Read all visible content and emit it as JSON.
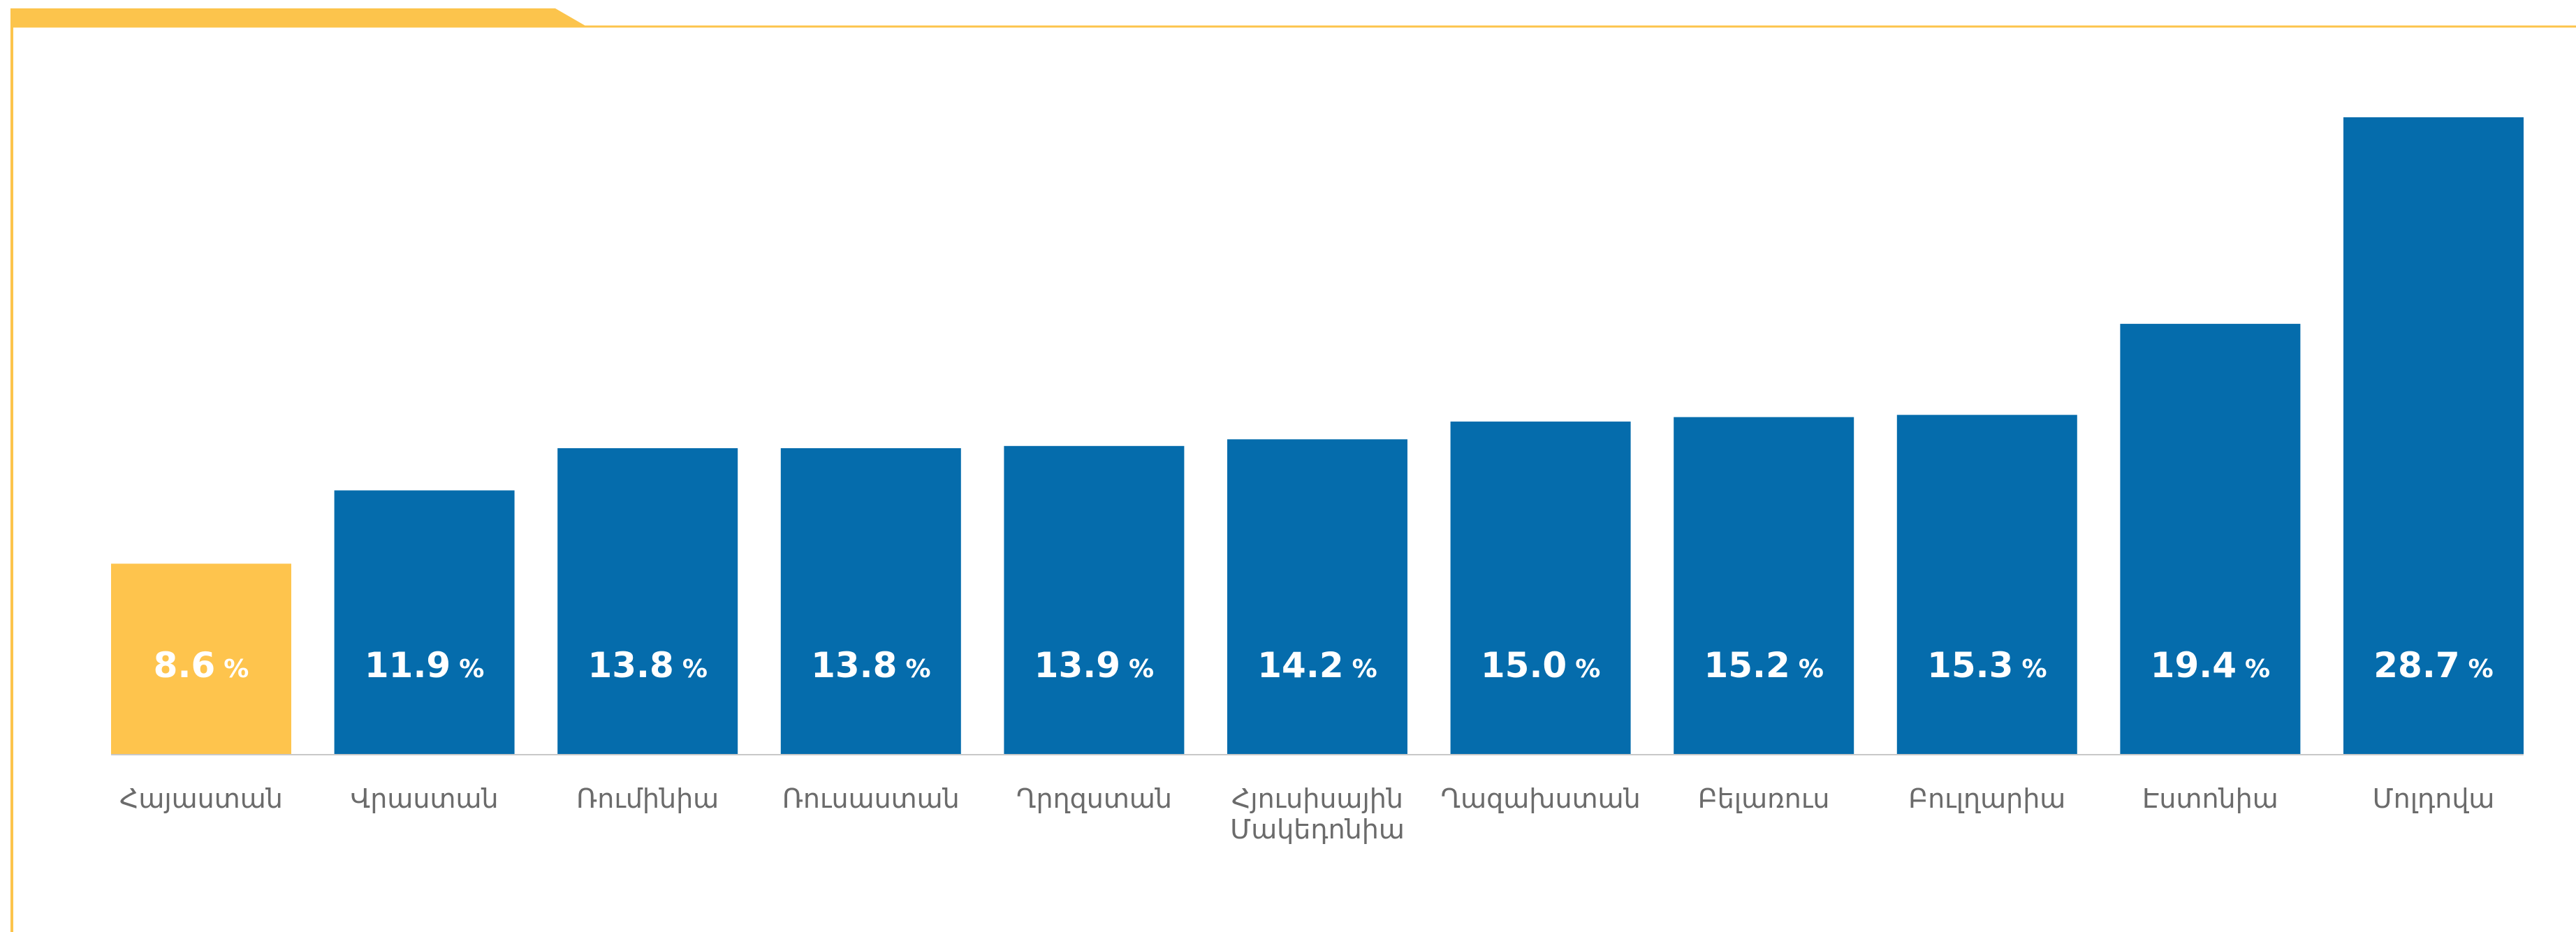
{
  "colors": {
    "frame": "#fcc44c",
    "highlight_bar": "#fec44d",
    "bar": "#056cac",
    "baseline": "#c8c8c8",
    "label_text": "#6b6b6b",
    "value_text": "#ffffff"
  },
  "chart_data": {
    "type": "bar",
    "title": "",
    "xlabel": "",
    "ylabel": "",
    "unit": "%",
    "ylim": [
      0,
      30
    ],
    "grid": false,
    "legend": "none",
    "highlight_index": 0,
    "categories": [
      [
        "Հայաստան"
      ],
      [
        "Վրաստան"
      ],
      [
        "Ռումինիա"
      ],
      [
        "Ռուսաստան"
      ],
      [
        "Ղրղզստան"
      ],
      [
        "Հյուսիսային",
        "Մակեդոնիա"
      ],
      [
        "Ղազախստան"
      ],
      [
        "Բելառուս"
      ],
      [
        "Բուլղարիա"
      ],
      [
        "Էստոնիա"
      ],
      [
        "Մոլդովա"
      ]
    ],
    "values": [
      8.6,
      11.9,
      13.8,
      13.8,
      13.9,
      14.2,
      15.0,
      15.2,
      15.3,
      19.4,
      28.7
    ],
    "value_labels": [
      "8.6",
      "11.9",
      "13.8",
      "13.8",
      "13.9",
      "14.2",
      "15.0",
      "15.2",
      "15.3",
      "19.4",
      "28.7"
    ]
  }
}
